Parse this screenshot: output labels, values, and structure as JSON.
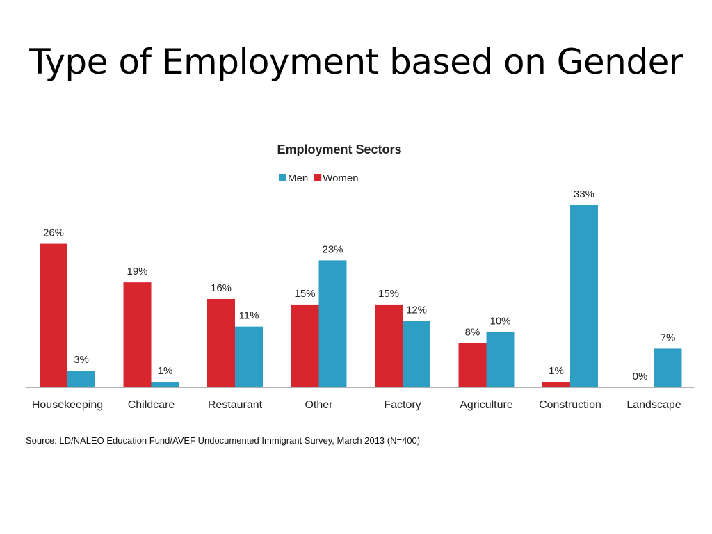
{
  "slide": {
    "title": "Type of Employment based on Gender",
    "source": "Source: LD/NALEO Education Fund/AVEF Undocumented Immigrant Survey, March 2013 (N=400)"
  },
  "chart_data": {
    "type": "bar",
    "title": "Employment Sectors",
    "categories": [
      "Housekeeping",
      "Childcare",
      "Restaurant",
      "Other",
      "Factory",
      "Agriculture",
      "Construction",
      "Landscape"
    ],
    "series": [
      {
        "name": "Women",
        "color": "#D7262E",
        "values": [
          26,
          19,
          16,
          15,
          15,
          8,
          1,
          0
        ],
        "labels": [
          "26%",
          "19%",
          "16%",
          "15%",
          "15%",
          "8%",
          "1%",
          "0%"
        ]
      },
      {
        "name": "Men",
        "color": "#2E9EC4",
        "values": [
          3,
          1,
          11,
          23,
          12,
          10,
          33,
          7
        ],
        "labels": [
          "3%",
          "1%",
          "11%",
          "23%",
          "12%",
          "10%",
          "33%",
          "7%"
        ]
      }
    ],
    "legend": [
      {
        "name": "Men",
        "color": "#2E9EC4"
      },
      {
        "name": "Women",
        "color": "#D7262E"
      }
    ],
    "legend_position": "top-center",
    "ylim": [
      0,
      33
    ],
    "grid": false
  }
}
